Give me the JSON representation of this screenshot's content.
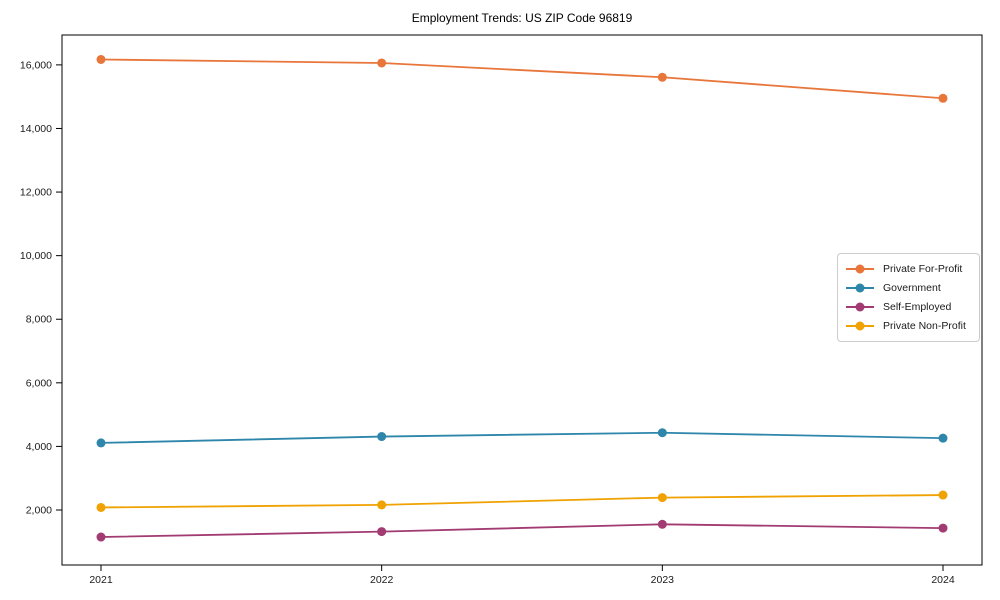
{
  "figure": {
    "background": "#ffffff",
    "axis_color": "#000000",
    "tick_label_color": "#1a1a1a"
  },
  "chart_data": {
    "type": "line",
    "title": "Employment Trends: US ZIP Code 96819",
    "xlabel": "",
    "ylabel": "",
    "grid": false,
    "legend_position": "center-right",
    "categories": [
      "2021",
      "2022",
      "2023",
      "2024"
    ],
    "series": [
      {
        "name": "Private For-Profit",
        "color": "#E8763B",
        "values": [
          16170,
          16060,
          15610,
          14950
        ]
      },
      {
        "name": "Government",
        "color": "#2E86AB",
        "values": [
          4110,
          4310,
          4430,
          4260
        ]
      },
      {
        "name": "Self-Employed",
        "color": "#A23B72",
        "values": [
          1150,
          1320,
          1550,
          1430
        ]
      },
      {
        "name": "Private Non-Profit",
        "color": "#F0A202",
        "values": [
          2080,
          2160,
          2390,
          2470
        ]
      }
    ],
    "yticks": [
      {
        "value": 2000,
        "label": "2,000"
      },
      {
        "value": 4000,
        "label": "4,000"
      },
      {
        "value": 6000,
        "label": "6,000"
      },
      {
        "value": 8000,
        "label": "8,000"
      },
      {
        "value": 10000,
        "label": "10,000"
      },
      {
        "value": 12000,
        "label": "12,000"
      },
      {
        "value": 14000,
        "label": "14,000"
      },
      {
        "value": 16000,
        "label": "16,000"
      }
    ],
    "ylim": [
      270,
      16940
    ]
  }
}
